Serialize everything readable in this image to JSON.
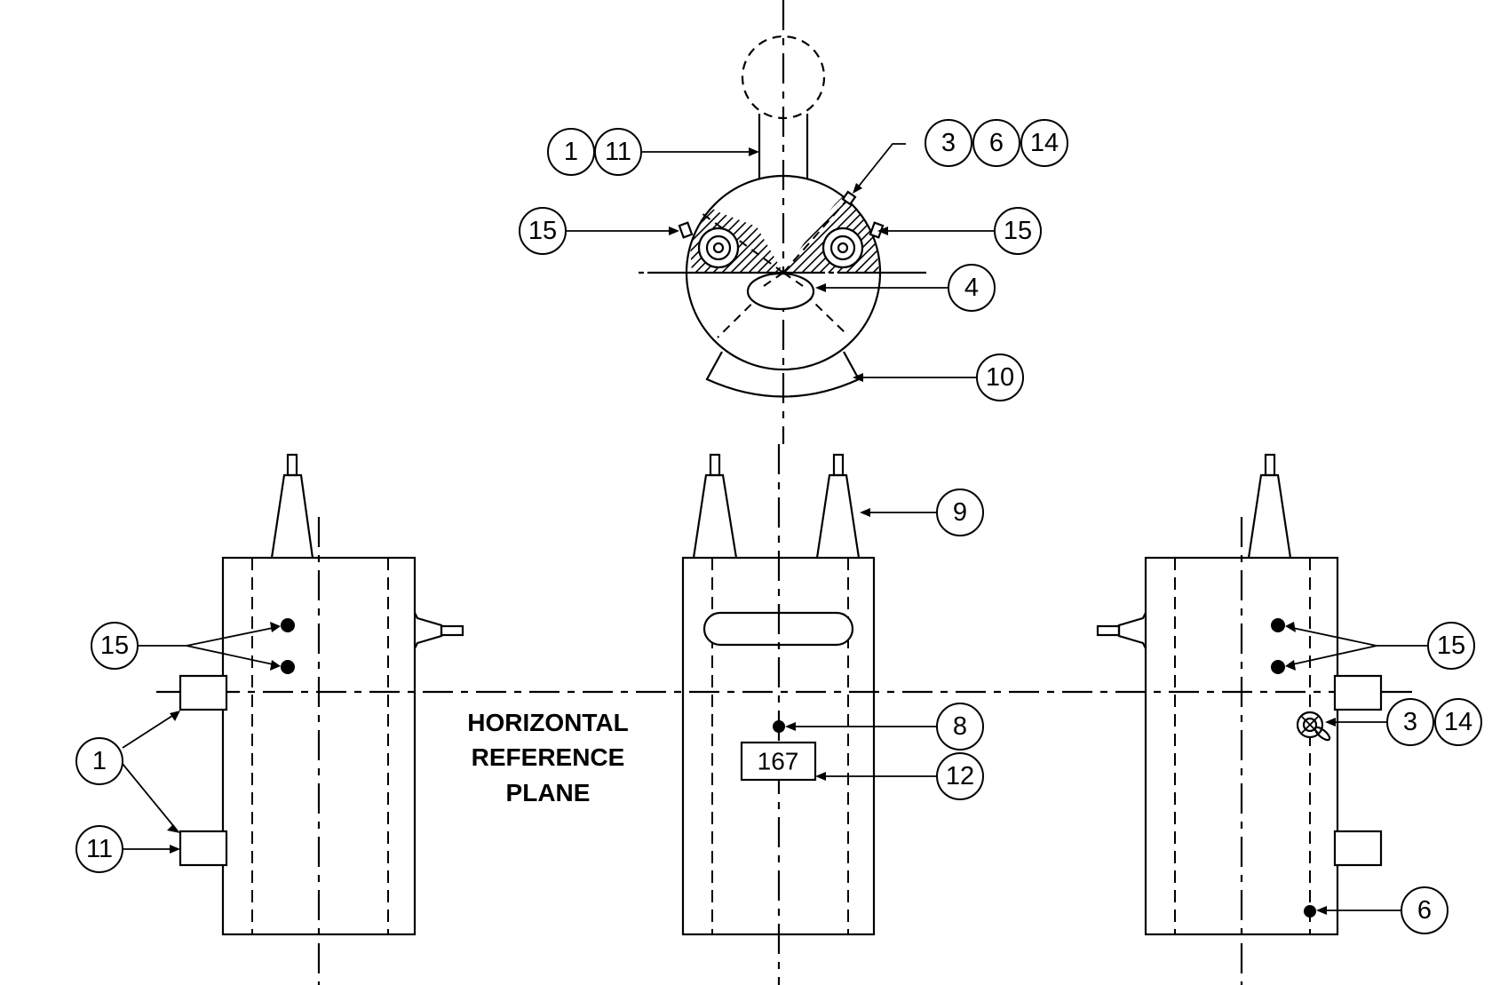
{
  "callouts": {
    "top_1": "1",
    "top_11": "11",
    "top_3": "3",
    "top_6": "6",
    "top_14": "14",
    "top_15_left": "15",
    "top_15_right": "15",
    "top_4": "4",
    "top_10": "10",
    "front_9": "9",
    "front_8": "8",
    "front_12": "12",
    "left_15": "15",
    "left_1": "1",
    "left_11": "11",
    "right_15": "15",
    "right_3": "3",
    "right_14": "14",
    "right_6": "6"
  },
  "nameplate_text": "167",
  "reference_label": {
    "line1": "HORIZONTAL",
    "line2": "REFERENCE",
    "line3": "PLANE"
  }
}
